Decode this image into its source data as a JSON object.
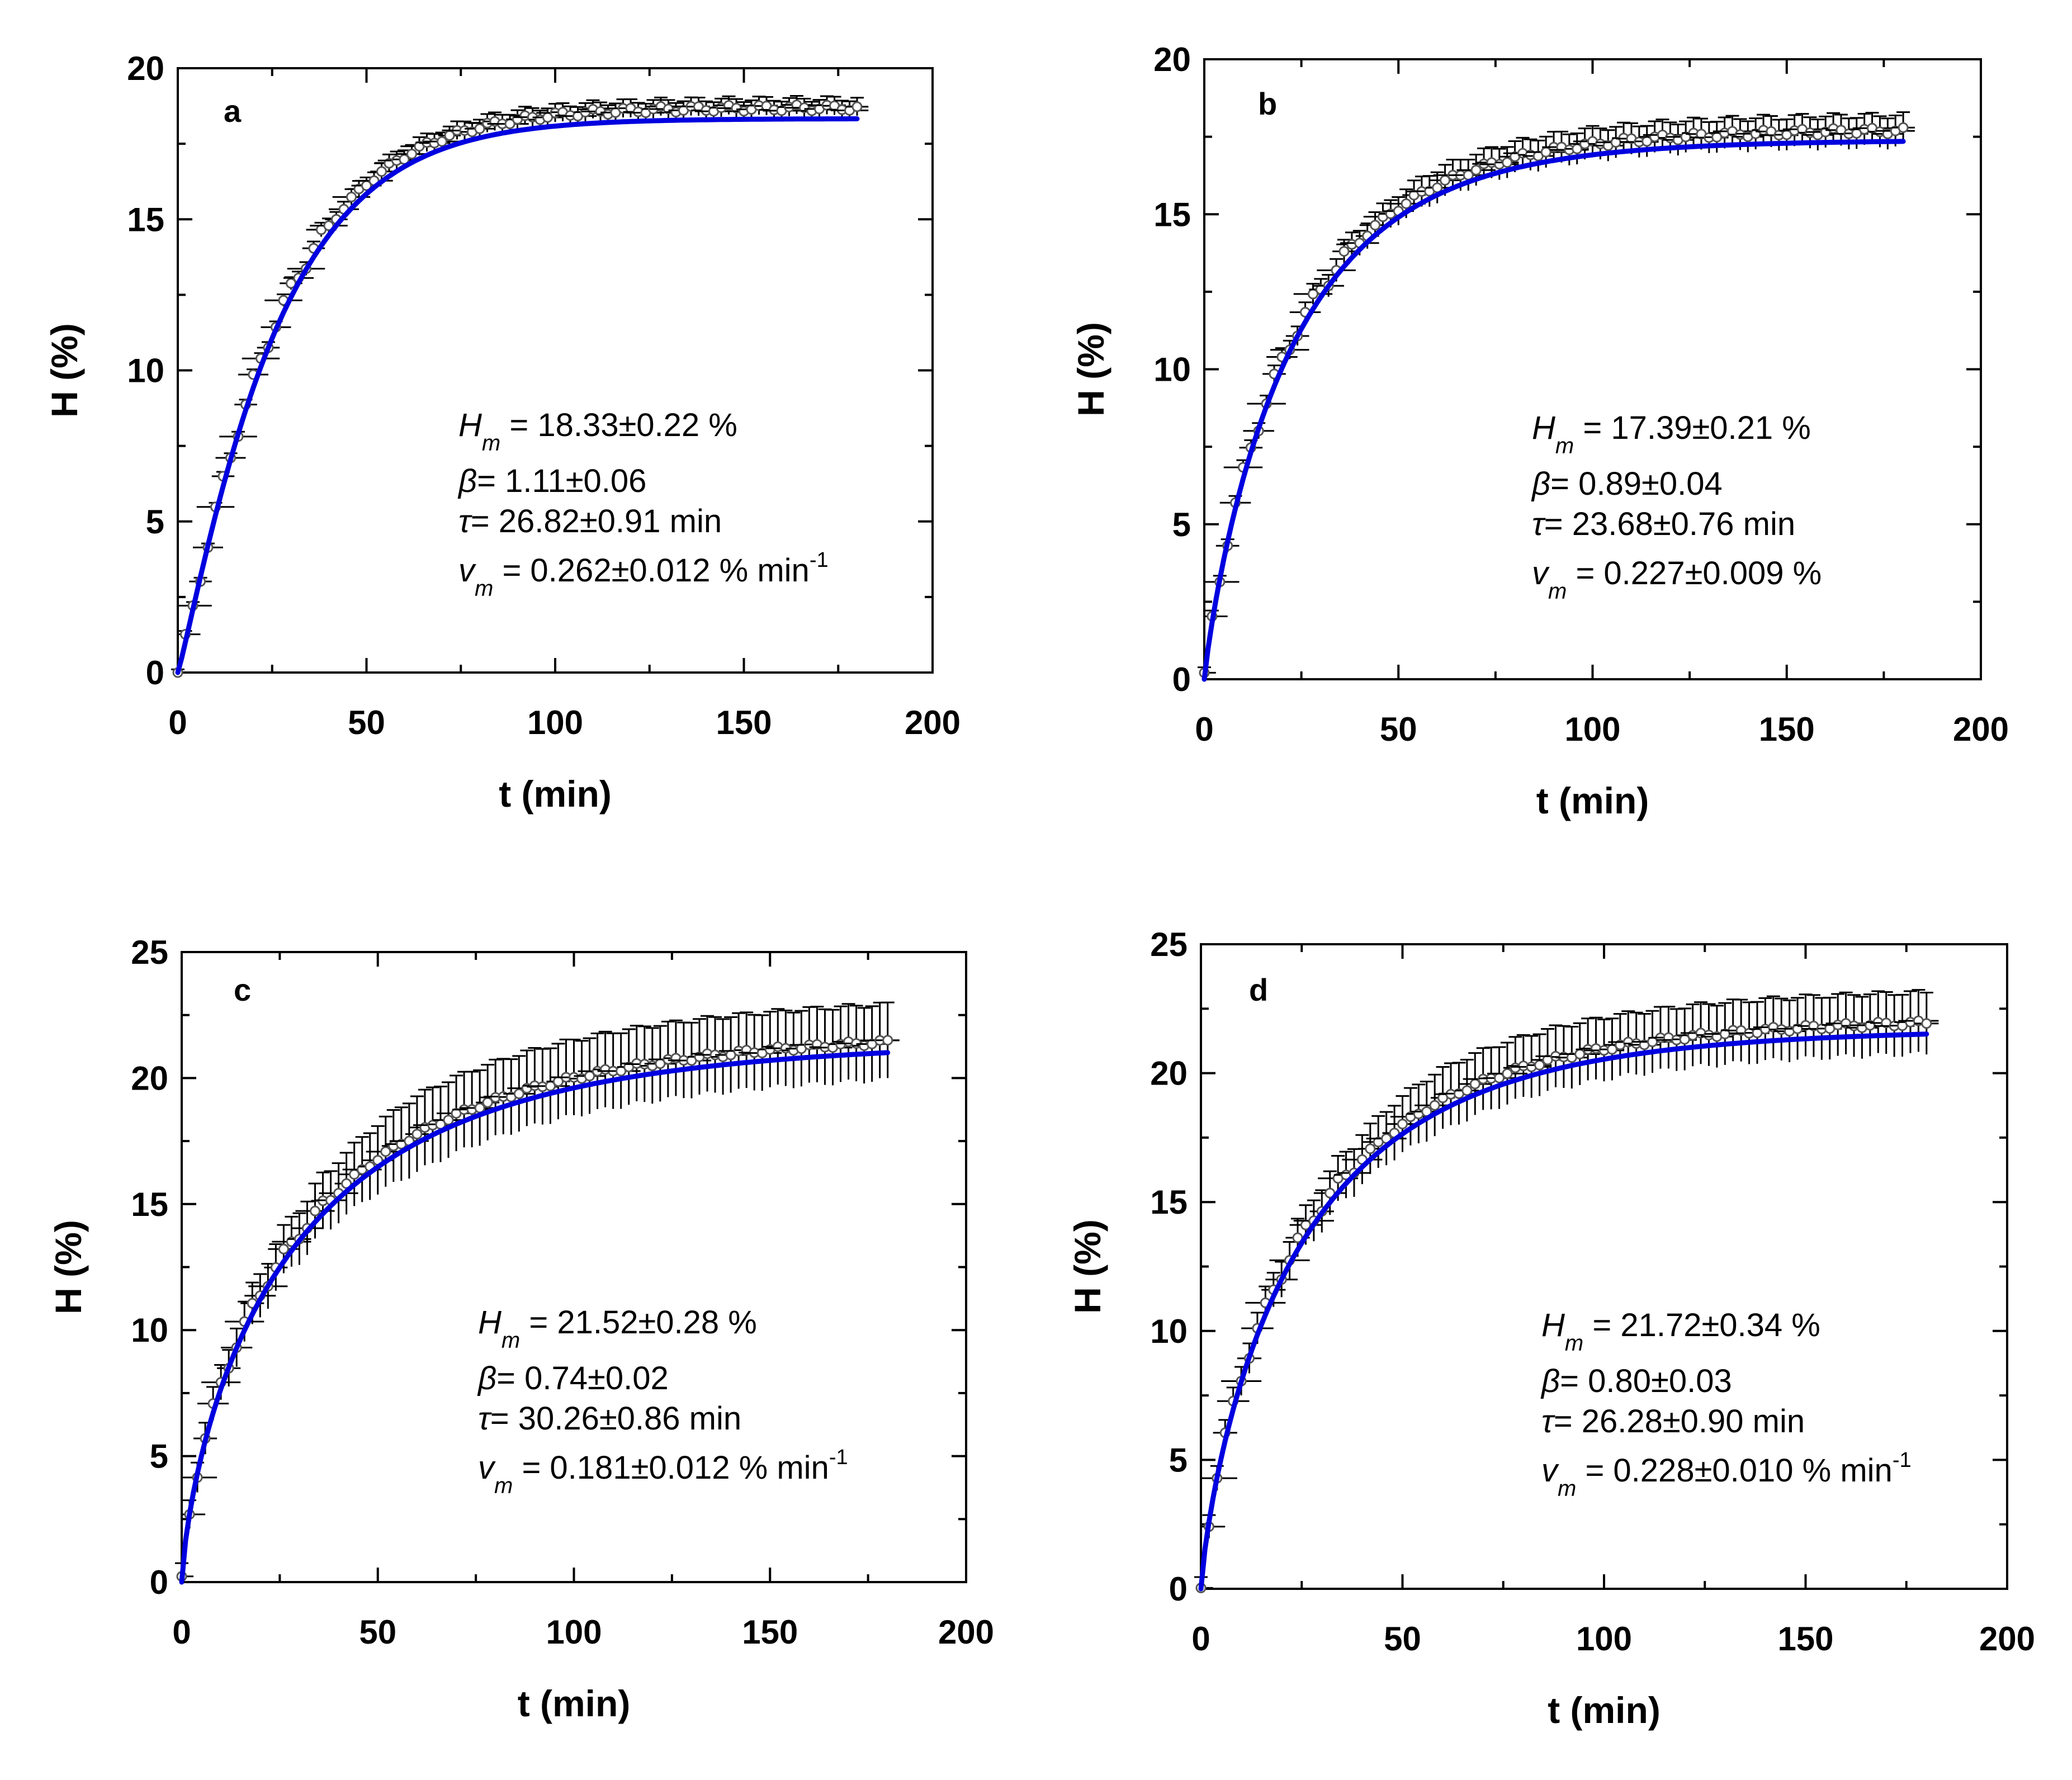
{
  "chart_data": [
    {
      "type": "scatter",
      "panel_label": "a",
      "xlabel": "t (min)",
      "ylabel": "H (%)",
      "xlim": [
        0,
        200
      ],
      "ylim": [
        0,
        20
      ],
      "x_ticks": [
        "0",
        "50",
        "100",
        "150",
        "200"
      ],
      "y_ticks": [
        "0",
        "5",
        "10",
        "15",
        "20"
      ],
      "series": [
        {
          "name": "measured",
          "style": "open circles with horizontal and vertical error bars",
          "x_range": [
            0,
            180
          ],
          "x_error": 5,
          "y_error": 0.3
        },
        {
          "name": "fit",
          "style": "blue solid line",
          "color": "#0000e0"
        }
      ],
      "fit_params": {
        "Hm": 18.33,
        "beta": 1.11,
        "tau": 26.82
      },
      "params": [
        {
          "sym": "H",
          "sub": "m",
          "text": " =  18.33±0.22 %",
          "sup": ""
        },
        {
          "sym": "β",
          "sub": "",
          "text": "= 1.11±0.06",
          "sup": ""
        },
        {
          "sym": "τ",
          "sub": "",
          "text": "= 26.82±0.91 min",
          "sup": ""
        },
        {
          "sym": "v",
          "sub": "m",
          "text": " = 0.262±0.012 % min",
          "sup": "-1"
        }
      ]
    },
    {
      "type": "scatter",
      "panel_label": "b",
      "xlabel": "t (min)",
      "ylabel": "H (%)",
      "xlim": [
        0,
        200
      ],
      "ylim": [
        0,
        20
      ],
      "x_ticks": [
        "0",
        "50",
        "100",
        "150",
        "200"
      ],
      "y_ticks": [
        "0",
        "5",
        "10",
        "15",
        "20"
      ],
      "series": [
        {
          "name": "measured",
          "style": "open circles with horizontal and vertical error bars",
          "x_range": [
            0,
            180
          ],
          "x_error": 5,
          "y_error": 0.5
        },
        {
          "name": "fit",
          "style": "blue solid line",
          "color": "#0000e0"
        }
      ],
      "fit_params": {
        "Hm": 17.39,
        "beta": 0.89,
        "tau": 23.68
      },
      "params": [
        {
          "sym": "H",
          "sub": "m",
          "text": " =  17.39±0.21 %",
          "sup": ""
        },
        {
          "sym": "β",
          "sub": "",
          "text": "= 0.89±0.04",
          "sup": ""
        },
        {
          "sym": "τ",
          "sub": "",
          "text": "= 23.68±0.76 min",
          "sup": ""
        },
        {
          "sym": "v",
          "sub": "m",
          "text": " = 0.227±0.009 %",
          "sup": ""
        }
      ]
    },
    {
      "type": "scatter",
      "panel_label": "c",
      "xlabel": "t (min)",
      "ylabel": "H (%)",
      "xlim": [
        0,
        200
      ],
      "ylim": [
        0,
        25
      ],
      "x_ticks": [
        "0",
        "50",
        "100",
        "150",
        "200"
      ],
      "y_ticks": [
        "0",
        "5",
        "10",
        "15",
        "20",
        "25"
      ],
      "series": [
        {
          "name": "measured",
          "style": "open circles with horizontal and vertical error bars",
          "x_range": [
            0,
            180
          ],
          "x_error": 5,
          "y_error": 1.5
        },
        {
          "name": "fit",
          "style": "blue solid line",
          "color": "#0000e0"
        }
      ],
      "fit_params": {
        "Hm": 21.52,
        "beta": 0.74,
        "tau": 30.26
      },
      "params": [
        {
          "sym": "H",
          "sub": "m",
          "text": " =  21.52±0.28 %",
          "sup": ""
        },
        {
          "sym": "β",
          "sub": "",
          "text": "= 0.74±0.02",
          "sup": ""
        },
        {
          "sym": "τ",
          "sub": "",
          "text": "= 30.26±0.86 min",
          "sup": ""
        },
        {
          "sym": "v",
          "sub": "m",
          "text": " = 0.181±0.012 % min",
          "sup": "-1"
        }
      ]
    },
    {
      "type": "scatter",
      "panel_label": "d",
      "xlabel": "t (min)",
      "ylabel": "H (%)",
      "xlim": [
        0,
        200
      ],
      "ylim": [
        0,
        25
      ],
      "x_ticks": [
        "0",
        "50",
        "100",
        "150",
        "200"
      ],
      "y_ticks": [
        "0",
        "5",
        "10",
        "15",
        "20",
        "25"
      ],
      "series": [
        {
          "name": "measured",
          "style": "open circles with horizontal and vertical error bars",
          "x_range": [
            0,
            180
          ],
          "x_error": 5,
          "y_error": 1.2
        },
        {
          "name": "fit",
          "style": "blue solid line",
          "color": "#0000e0"
        }
      ],
      "fit_params": {
        "Hm": 21.72,
        "beta": 0.8,
        "tau": 26.28
      },
      "params": [
        {
          "sym": "H",
          "sub": "m",
          "text": " =  21.72±0.34 %",
          "sup": ""
        },
        {
          "sym": "β",
          "sub": "",
          "text": "= 0.80±0.03",
          "sup": ""
        },
        {
          "sym": "τ",
          "sub": "",
          "text": "= 26.28±0.90 min",
          "sup": ""
        },
        {
          "sym": "v",
          "sub": "m",
          "text": " = 0.228±0.010 % min",
          "sup": "-1"
        }
      ]
    }
  ]
}
